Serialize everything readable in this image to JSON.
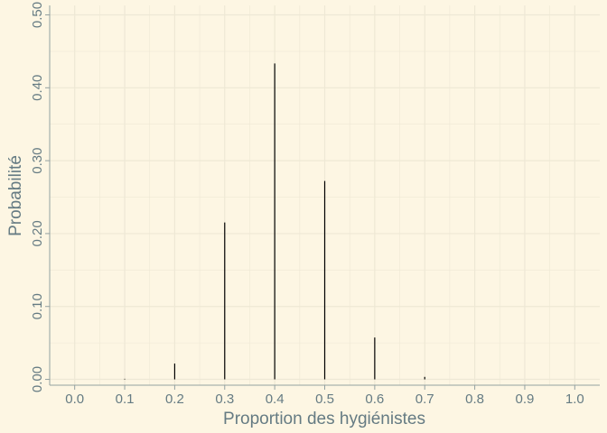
{
  "chart_data": {
    "type": "bar",
    "title": "",
    "xlabel": "Proportion des hygiénistes",
    "ylabel": "Probabilité",
    "x_ticks": [
      "0.0",
      "0.1",
      "0.2",
      "0.3",
      "0.4",
      "0.5",
      "0.6",
      "0.7",
      "0.8",
      "0.9",
      "1.0"
    ],
    "y_ticks": [
      "0.00",
      "0.10",
      "0.20",
      "0.30",
      "0.40",
      "0.50"
    ],
    "xlim": [
      -0.05,
      1.05
    ],
    "ylim": [
      -0.008,
      0.513
    ],
    "grid": true,
    "x": [
      0.0,
      0.1,
      0.2,
      0.3,
      0.4,
      0.5,
      0.6,
      0.7,
      0.8,
      0.9,
      1.0
    ],
    "values": [
      0.0,
      0.0008,
      0.0217,
      0.2152,
      0.4334,
      0.2722,
      0.0574,
      0.0034,
      0.0,
      0.0,
      0.0
    ],
    "colors": {
      "background": "#fdf6e3",
      "grid": "#eee8d5",
      "bar": "#000000",
      "text": "#657b83",
      "axis": "#93a1a1"
    }
  }
}
